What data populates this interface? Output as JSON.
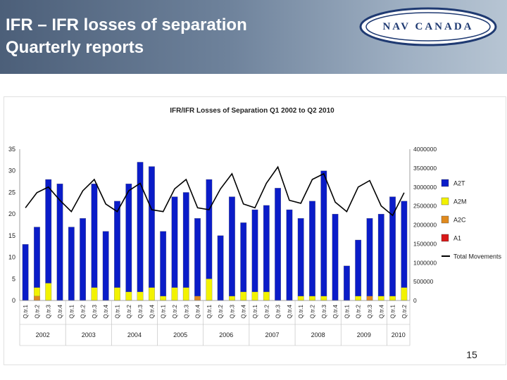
{
  "header": {
    "title_line1": "IFR – IFR losses of separation",
    "title_line2": "Quarterly reports",
    "logo_text": "NAV CANADA"
  },
  "page_number": "15",
  "colors": {
    "A2T": "#0a1cc8",
    "A2M": "#f2f200",
    "A2C": "#e08a1e",
    "A1": "#d81818",
    "Total Movements": "#000000"
  },
  "chart_data": {
    "type": "bar",
    "title": "IFR/IFR Losses of Separation Q1 2002 to Q2 2010",
    "categories": [
      "Q.tr.1",
      "Q.tr.2",
      "Q.tr.3",
      "Q.tr.4",
      "Q.tr.1",
      "Q.tr.2",
      "Q.tr.3",
      "Q.tr.4",
      "Q.tr.1",
      "Q.tr.2",
      "Q.tr.3",
      "Q.tr.4",
      "Q.tr.1",
      "Q.tr.2",
      "Q.tr.3",
      "Q.tr.4",
      "Q.tr.1",
      "Q.tr.2",
      "Q.tr.3",
      "Q.tr.4",
      "Q.tr.1",
      "Q.tr.2",
      "Q.tr.3",
      "Q.tr.4",
      "Q.tr.1",
      "Q.tr.2",
      "Q.tr.3",
      "Q.tr.4",
      "Q.tr.1",
      "Q.tr.2",
      "Q.tr.3",
      "Q.tr.4",
      "Q.tr.1",
      "Q.tr.2"
    ],
    "years": [
      "2002",
      "2003",
      "2004",
      "2005",
      "2006",
      "2007",
      "2008",
      "2009",
      "2010"
    ],
    "series": [
      {
        "name": "A2T",
        "values": [
          13,
          14,
          24,
          27,
          17,
          19,
          24,
          16,
          20,
          25,
          30,
          28,
          15,
          21,
          22,
          18,
          23,
          15,
          23,
          16,
          19,
          20,
          26,
          21,
          18,
          22,
          29,
          20,
          8,
          13,
          18,
          19,
          23,
          20
        ]
      },
      {
        "name": "A2M",
        "values": [
          0,
          2,
          4,
          0,
          0,
          0,
          3,
          0,
          3,
          2,
          2,
          3,
          1,
          3,
          3,
          0,
          5,
          0,
          1,
          2,
          2,
          2,
          0,
          0,
          1,
          1,
          1,
          0,
          0,
          1,
          0,
          1,
          1,
          3
        ]
      },
      {
        "name": "A2C",
        "values": [
          0,
          1,
          0,
          0,
          0,
          0,
          0,
          0,
          0,
          0,
          0,
          0,
          0,
          0,
          0,
          1,
          0,
          0,
          0,
          0,
          0,
          0,
          0,
          0,
          0,
          0,
          0,
          0,
          0,
          0,
          1,
          0,
          0,
          0
        ]
      },
      {
        "name": "A1",
        "values": [
          0,
          0,
          0,
          0,
          0,
          0,
          0,
          0,
          0,
          0,
          0,
          0,
          0,
          0,
          0,
          0,
          0,
          0,
          0,
          0,
          0,
          0,
          0,
          0,
          0,
          0,
          0,
          0,
          0,
          0,
          0,
          0,
          0,
          0
        ]
      },
      {
        "name": "Total Movements",
        "axis": "right",
        "values": [
          2450000,
          2850000,
          3000000,
          2650000,
          2350000,
          2900000,
          3200000,
          2550000,
          2350000,
          2900000,
          3100000,
          2400000,
          2350000,
          2950000,
          3200000,
          2450000,
          2400000,
          2950000,
          3350000,
          2550000,
          2450000,
          3100000,
          3530000,
          2650000,
          2570000,
          3200000,
          3350000,
          2600000,
          2350000,
          3000000,
          3170000,
          2500000,
          2250000,
          2850000
        ]
      }
    ],
    "yleft": {
      "min": 0,
      "max": 35,
      "ticks": [
        0,
        5,
        10,
        15,
        20,
        25,
        30,
        35
      ]
    },
    "yright": {
      "min": 0,
      "max": 4000000,
      "ticks": [
        0,
        500000,
        1000000,
        1500000,
        2000000,
        2500000,
        3000000,
        3500000,
        4000000
      ]
    },
    "legend_position": "right",
    "grid": false
  }
}
